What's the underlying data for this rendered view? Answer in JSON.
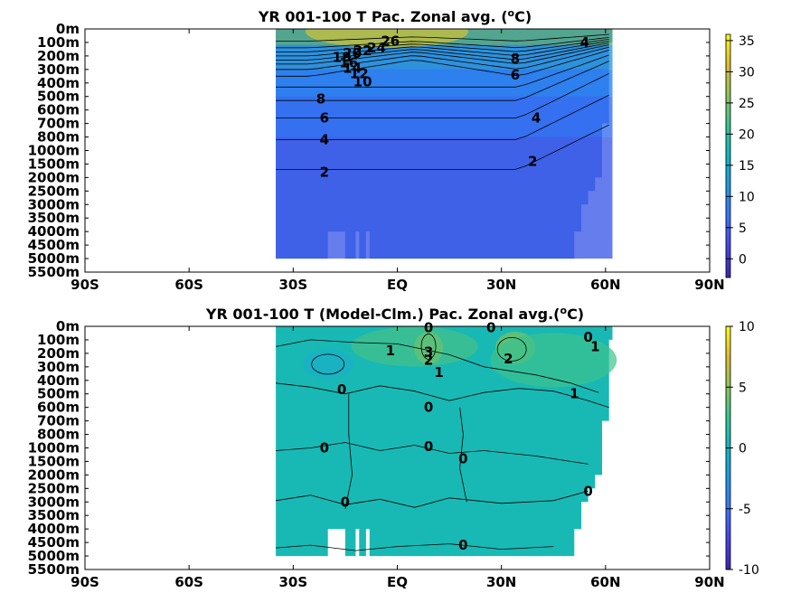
{
  "colors": {
    "colormap": [
      "#3e26a8",
      "#4743e7",
      "#3a74f8",
      "#1e98e2",
      "#0db6c2",
      "#35c492",
      "#8ac35a",
      "#ddba2d",
      "#f9fb15"
    ],
    "contour_line": "#000000",
    "axes": "#000000",
    "background": "#ffffff"
  },
  "chart_data": [
    {
      "type": "heatmap",
      "title": "YR 001-100 T Pac. Zonal avg. (",
      "title_super": "o",
      "title_tail": "C)",
      "x_ticks": [
        "90S",
        "60S",
        "30S",
        "EQ",
        "30N",
        "60N",
        "90N"
      ],
      "x_tick_values": [
        -90,
        -60,
        -30,
        0,
        30,
        60,
        90
      ],
      "y_ticks": [
        "0m",
        "100m",
        "200m",
        "300m",
        "400m",
        "500m",
        "600m",
        "700m",
        "800m",
        "1000m",
        "1500m",
        "2000m",
        "2500m",
        "3000m",
        "3500m",
        "4000m",
        "4500m",
        "5000m",
        "5500m"
      ],
      "xlim": [
        -90,
        90
      ],
      "data_lat_range": [
        -35,
        62
      ],
      "colorbar": {
        "ticks": [
          "35",
          "30",
          "25",
          "20",
          "15",
          "10",
          "5",
          "0"
        ],
        "tick_values": [
          35,
          30,
          25,
          20,
          15,
          10,
          5,
          0
        ],
        "range": [
          -3,
          36
        ]
      },
      "contour_labels": [
        {
          "text": "26",
          "lat": -2,
          "depth_index": 0.9
        },
        {
          "text": "24",
          "lat": -6,
          "depth_index": 1.4
        },
        {
          "text": "22",
          "lat": -10,
          "depth_index": 1.6
        },
        {
          "text": "20",
          "lat": -13,
          "depth_index": 1.8
        },
        {
          "text": "18",
          "lat": -16,
          "depth_index": 2.1
        },
        {
          "text": "16",
          "lat": -14,
          "depth_index": 2.5
        },
        {
          "text": "14",
          "lat": -13,
          "depth_index": 2.9
        },
        {
          "text": "12",
          "lat": -11,
          "depth_index": 3.3
        },
        {
          "text": "10",
          "lat": -10,
          "depth_index": 3.9
        },
        {
          "text": "8",
          "lat": -22,
          "depth_index": 5.2
        },
        {
          "text": "6",
          "lat": -21,
          "depth_index": 6.6
        },
        {
          "text": "4",
          "lat": -21,
          "depth_index": 8.2
        },
        {
          "text": "2",
          "lat": -21,
          "depth_index": 10.6
        },
        {
          "text": "2",
          "lat": 39,
          "depth_index": 9.8
        },
        {
          "text": "4",
          "lat": 40,
          "depth_index": 6.6
        },
        {
          "text": "6",
          "lat": 34,
          "depth_index": 3.4
        },
        {
          "text": "8",
          "lat": 34,
          "depth_index": 2.2
        },
        {
          "text": "4",
          "lat": 54,
          "depth_index": 1.0
        }
      ]
    },
    {
      "type": "heatmap",
      "title": "YR 001-100 T (Model-Clm.) Pac. Zonal avg.(",
      "title_super": "o",
      "title_tail": "C)",
      "x_ticks": [
        "90S",
        "60S",
        "30S",
        "EQ",
        "30N",
        "60N",
        "90N"
      ],
      "x_tick_values": [
        -90,
        -60,
        -30,
        0,
        30,
        60,
        90
      ],
      "y_ticks": [
        "0m",
        "100m",
        "200m",
        "300m",
        "400m",
        "500m",
        "600m",
        "700m",
        "800m",
        "1000m",
        "1500m",
        "2000m",
        "2500m",
        "3000m",
        "3500m",
        "4000m",
        "4500m",
        "5000m",
        "5500m"
      ],
      "xlim": [
        -90,
        90
      ],
      "data_lat_range": [
        -35,
        62
      ],
      "colorbar": {
        "ticks": [
          "10",
          "5",
          "0",
          "-5",
          "-10"
        ],
        "tick_values": [
          10,
          5,
          0,
          -5,
          -10
        ],
        "range": [
          -10,
          10
        ]
      },
      "contour_labels": [
        {
          "text": "0",
          "lat": 9,
          "depth_index": 0.1
        },
        {
          "text": "0",
          "lat": 27,
          "depth_index": 0.1
        },
        {
          "text": "1",
          "lat": -2,
          "depth_index": 1.8
        },
        {
          "text": "3",
          "lat": 9,
          "depth_index": 1.9
        },
        {
          "text": "2",
          "lat": 9,
          "depth_index": 2.5
        },
        {
          "text": "1",
          "lat": 12,
          "depth_index": 3.4
        },
        {
          "text": "2",
          "lat": 32,
          "depth_index": 2.4
        },
        {
          "text": "0",
          "lat": 55,
          "depth_index": 0.8
        },
        {
          "text": "1",
          "lat": 57,
          "depth_index": 1.5
        },
        {
          "text": "1",
          "lat": 51,
          "depth_index": 5.0
        },
        {
          "text": "0",
          "lat": -16,
          "depth_index": 4.7
        },
        {
          "text": "0",
          "lat": 9,
          "depth_index": 6.0
        },
        {
          "text": "0",
          "lat": -21,
          "depth_index": 9.0
        },
        {
          "text": "0",
          "lat": 9,
          "depth_index": 8.9
        },
        {
          "text": "0",
          "lat": 19,
          "depth_index": 9.8
        },
        {
          "text": "0",
          "lat": 55,
          "depth_index": 12.2
        },
        {
          "text": "0",
          "lat": -15,
          "depth_index": 13.0
        },
        {
          "text": "0",
          "lat": 19,
          "depth_index": 16.2
        }
      ]
    }
  ]
}
